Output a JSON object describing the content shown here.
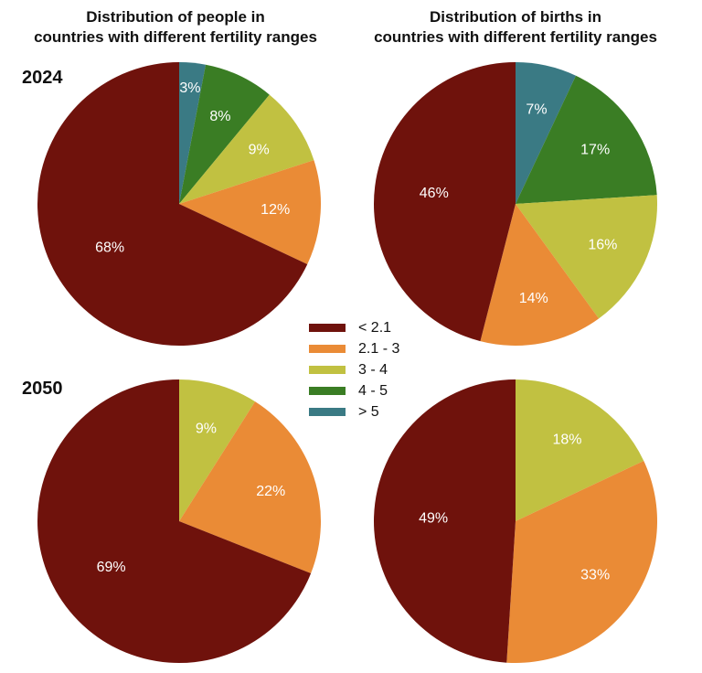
{
  "titles": {
    "left": [
      "Distribution of people in",
      "countries with different fertility ranges"
    ],
    "right": [
      "Distribution of births in",
      "countries with different fertility ranges"
    ]
  },
  "years": [
    "2024",
    "2050"
  ],
  "legend": [
    {
      "label": "< 2.1",
      "color": "#6f120c"
    },
    {
      "label": "2.1 - 3",
      "color": "#ea8b36"
    },
    {
      "label": "3 - 4",
      "color": "#c1c141"
    },
    {
      "label": "4 - 5",
      "color": "#3a7d24"
    },
    {
      "label": "> 5",
      "color": "#3a7a84"
    }
  ],
  "chart_data": [
    {
      "type": "pie",
      "title": "Distribution of people in countries with different fertility ranges",
      "year": "2024",
      "slices": [
        {
          "category": "> 5",
          "value": 3,
          "label": "3%",
          "color": "#3a7a84"
        },
        {
          "category": "4 - 5",
          "value": 8,
          "label": "8%",
          "color": "#3a7d24"
        },
        {
          "category": "3 - 4",
          "value": 9,
          "label": "9%",
          "color": "#c1c141"
        },
        {
          "category": "2.1 - 3",
          "value": 12,
          "label": "12%",
          "color": "#ea8b36"
        },
        {
          "category": "< 2.1",
          "value": 68,
          "label": "68%",
          "color": "#6f120c"
        }
      ]
    },
    {
      "type": "pie",
      "title": "Distribution of births in countries with different fertility ranges",
      "year": "2024",
      "slices": [
        {
          "category": "> 5",
          "value": 7,
          "label": "7%",
          "color": "#3a7a84"
        },
        {
          "category": "4 - 5",
          "value": 17,
          "label": "17%",
          "color": "#3a7d24"
        },
        {
          "category": "3 - 4",
          "value": 16,
          "label": "16%",
          "color": "#c1c141"
        },
        {
          "category": "2.1 - 3",
          "value": 14,
          "label": "14%",
          "color": "#ea8b36"
        },
        {
          "category": "< 2.1",
          "value": 46,
          "label": "46%",
          "color": "#6f120c"
        }
      ]
    },
    {
      "type": "pie",
      "title": "Distribution of people in countries with different fertility ranges",
      "year": "2050",
      "slices": [
        {
          "category": "3 - 4",
          "value": 9,
          "label": "9%",
          "color": "#c1c141"
        },
        {
          "category": "2.1 - 3",
          "value": 22,
          "label": "22%",
          "color": "#ea8b36"
        },
        {
          "category": "< 2.1",
          "value": 69,
          "label": "69%",
          "color": "#6f120c"
        }
      ]
    },
    {
      "type": "pie",
      "title": "Distribution of births in countries with different fertility ranges",
      "year": "2050",
      "slices": [
        {
          "category": "3 - 4",
          "value": 18,
          "label": "18%",
          "color": "#c1c141"
        },
        {
          "category": "2.1 - 3",
          "value": 33,
          "label": "33%",
          "color": "#ea8b36"
        },
        {
          "category": "< 2.1",
          "value": 49,
          "label": "49%",
          "color": "#6f120c"
        }
      ]
    }
  ]
}
